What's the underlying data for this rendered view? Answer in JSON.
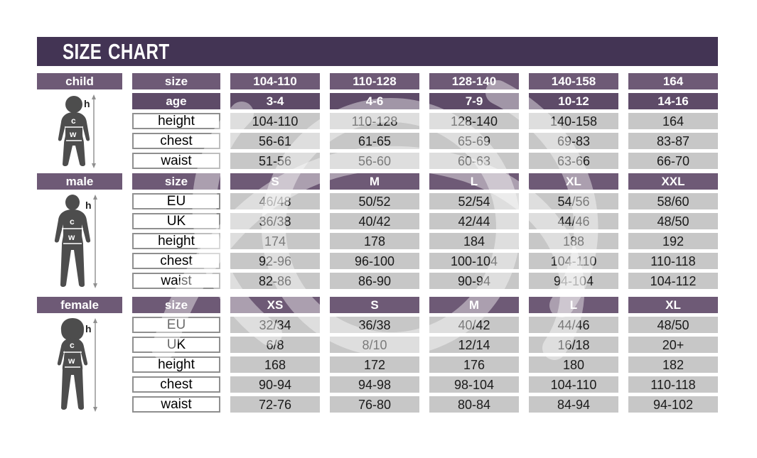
{
  "title": "SIZE CHART",
  "colors": {
    "title_bar": "#433454",
    "header": "#6e5a76",
    "header_dark": "#5e4b68",
    "cell_gray": "#c7c7c7",
    "label_border": "#8f8f8f",
    "silhouette": "#4d4d4d",
    "text_dark": "#1a1a1a"
  },
  "figure_labels": {
    "height": "h",
    "chest": "c",
    "waist": "w"
  },
  "chart_data": [
    {
      "type": "table",
      "title": "child",
      "column_header_label": "size",
      "columns": [
        "104-110",
        "110-128",
        "128-140",
        "140-158",
        "164"
      ],
      "rows": [
        {
          "label": "age",
          "dark": true,
          "values": [
            "3-4",
            "4-6",
            "7-9",
            "10-12",
            "14-16"
          ]
        },
        {
          "label": "height",
          "values": [
            "104-110",
            "110-128",
            "128-140",
            "140-158",
            "164"
          ]
        },
        {
          "label": "chest",
          "values": [
            "56-61",
            "61-65",
            "65-69",
            "69-83",
            "83-87"
          ]
        },
        {
          "label": "waist",
          "values": [
            "51-56",
            "56-60",
            "60-63",
            "63-66",
            "66-70"
          ]
        }
      ]
    },
    {
      "type": "table",
      "title": "male",
      "column_header_label": "size",
      "columns": [
        "S",
        "M",
        "L",
        "XL",
        "XXL"
      ],
      "rows": [
        {
          "label": "EU",
          "values": [
            "46/48",
            "50/52",
            "52/54",
            "54/56",
            "58/60"
          ]
        },
        {
          "label": "UK",
          "values": [
            "36/38",
            "40/42",
            "42/44",
            "44/46",
            "48/50"
          ]
        },
        {
          "label": "height",
          "values": [
            "174",
            "178",
            "184",
            "188",
            "192"
          ]
        },
        {
          "label": "chest",
          "values": [
            "92-96",
            "96-100",
            "100-104",
            "104-110",
            "110-118"
          ]
        },
        {
          "label": "waist",
          "values": [
            "82-86",
            "86-90",
            "90-94",
            "94-104",
            "104-112"
          ]
        }
      ]
    },
    {
      "type": "table",
      "title": "female",
      "column_header_label": "size",
      "columns": [
        "XS",
        "S",
        "M",
        "L",
        "XL"
      ],
      "rows": [
        {
          "label": "EU",
          "values": [
            "32/34",
            "36/38",
            "40/42",
            "44/46",
            "48/50"
          ]
        },
        {
          "label": "UK",
          "values": [
            "6/8",
            "8/10",
            "12/14",
            "16/18",
            "20+"
          ]
        },
        {
          "label": "height",
          "values": [
            "168",
            "172",
            "176",
            "180",
            "182"
          ]
        },
        {
          "label": "chest",
          "values": [
            "90-94",
            "94-98",
            "98-104",
            "104-110",
            "110-118"
          ]
        },
        {
          "label": "waist",
          "values": [
            "72-76",
            "76-80",
            "80-84",
            "84-94",
            "94-102"
          ]
        }
      ]
    }
  ]
}
